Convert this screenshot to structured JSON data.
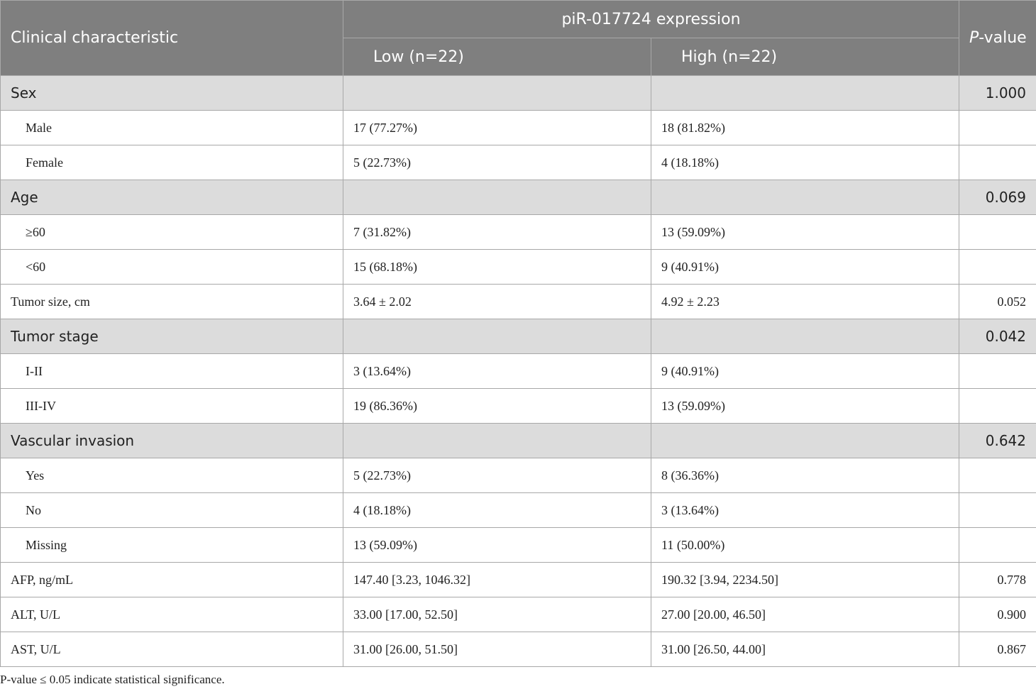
{
  "header": {
    "col_characteristic": "Clinical characteristic",
    "col_expression_group": "piR-017724 expression",
    "col_low": "Low (n=22)",
    "col_high": "High (n=22)",
    "col_pvalue_italic": "P",
    "col_pvalue_rest": "-value"
  },
  "rows": [
    {
      "label": "Sex",
      "low": "",
      "high": "",
      "p": "1.000",
      "type": "group"
    },
    {
      "label": "Male",
      "low": "17 (77.27%)",
      "high": "18 (81.82%)",
      "p": "",
      "type": "sub"
    },
    {
      "label": "Female",
      "low": "5 (22.73%)",
      "high": "4 (18.18%)",
      "p": "",
      "type": "sub"
    },
    {
      "label": "Age",
      "low": "",
      "high": "",
      "p": "0.069",
      "type": "group"
    },
    {
      "label": "≥60",
      "low": "7 (31.82%)",
      "high": "13 (59.09%)",
      "p": "",
      "type": "sub"
    },
    {
      "label": "<60",
      "low": "15 (68.18%)",
      "high": "9 (40.91%)",
      "p": "",
      "type": "sub"
    },
    {
      "label": "Tumor size, cm",
      "low": "3.64 ± 2.02",
      "high": "4.92 ± 2.23",
      "p": "0.052",
      "type": "plain"
    },
    {
      "label": "Tumor stage",
      "low": "",
      "high": "",
      "p": "0.042",
      "type": "group"
    },
    {
      "label": "I-II",
      "low": "3 (13.64%)",
      "high": "9 (40.91%)",
      "p": "",
      "type": "sub"
    },
    {
      "label": "III-IV",
      "low": "19 (86.36%)",
      "high": "13 (59.09%)",
      "p": "",
      "type": "sub"
    },
    {
      "label": "Vascular invasion",
      "low": "",
      "high": "",
      "p": "0.642",
      "type": "group"
    },
    {
      "label": "Yes",
      "low": "5 (22.73%)",
      "high": "8 (36.36%)",
      "p": "",
      "type": "sub"
    },
    {
      "label": "No",
      "low": "4 (18.18%)",
      "high": "3 (13.64%)",
      "p": "",
      "type": "sub"
    },
    {
      "label": "Missing",
      "low": "13 (59.09%)",
      "high": "11 (50.00%)",
      "p": "",
      "type": "sub"
    },
    {
      "label": "AFP, ng/mL",
      "low": "147.40 [3.23, 1046.32]",
      "high": "190.32 [3.94, 2234.50]",
      "p": "0.778",
      "type": "plain"
    },
    {
      "label": "ALT, U/L",
      "low": "33.00 [17.00, 52.50]",
      "high": "27.00 [20.00, 46.50]",
      "p": "0.900",
      "type": "plain"
    },
    {
      "label": "AST, U/L",
      "low": "31.00 [26.00, 51.50]",
      "high": "31.00 [26.50, 44.00]",
      "p": "0.867",
      "type": "plain"
    }
  ],
  "footnote": "P-value ≤ 0.05 indicate statistical significance."
}
